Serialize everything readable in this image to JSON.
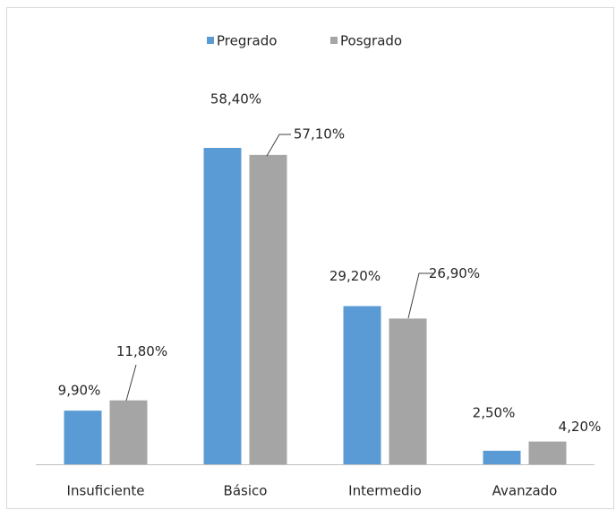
{
  "chart_data": {
    "type": "bar",
    "categories": [
      "Insuficiente",
      "Básico",
      "Intermedio",
      "Avanzado"
    ],
    "series": [
      {
        "name": "Pregrado",
        "color": "#5b9bd5",
        "values": [
          9.9,
          58.4,
          29.2,
          2.5
        ],
        "value_labels": [
          "9,90%",
          "58,40%",
          "29,20%",
          "2,50%"
        ]
      },
      {
        "name": "Posgrado",
        "color": "#a5a5a5",
        "values": [
          11.8,
          57.1,
          26.9,
          4.2
        ],
        "value_labels": [
          "11,80%",
          "57,10%",
          "26,90%",
          "4,20%"
        ]
      }
    ],
    "legend": "top"
  }
}
